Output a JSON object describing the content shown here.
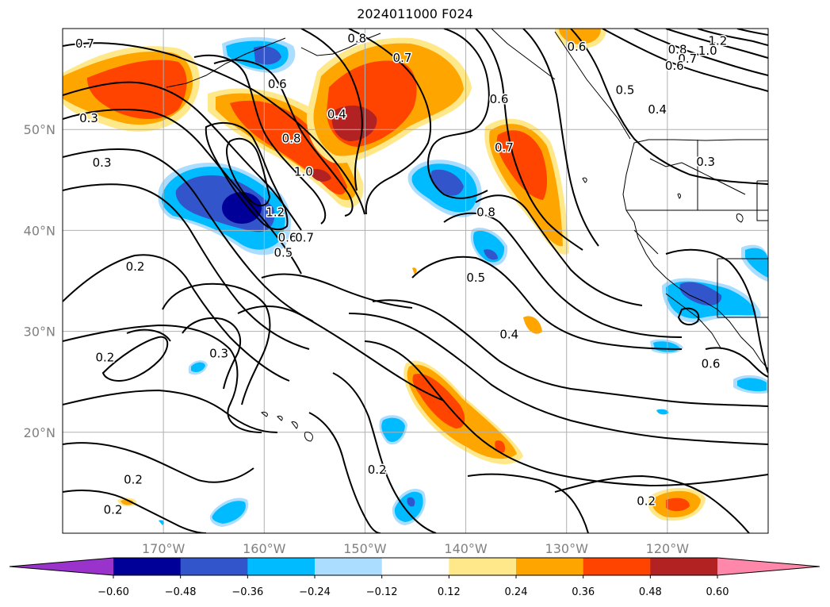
{
  "chart_data": {
    "type": "contour-map",
    "title": "2024011000 F024",
    "projection": "cylindrical",
    "lon_range": [
      -180,
      -110
    ],
    "lat_range": [
      10,
      60
    ],
    "lon_ticks": [
      {
        "value": -170,
        "label": "170°W"
      },
      {
        "value": -160,
        "label": "160°W"
      },
      {
        "value": -150,
        "label": "150°W"
      },
      {
        "value": -140,
        "label": "140°W"
      },
      {
        "value": -130,
        "label": "130°W"
      },
      {
        "value": -120,
        "label": "120°W"
      }
    ],
    "lat_ticks": [
      {
        "value": 20,
        "label": "20°N"
      },
      {
        "value": 30,
        "label": "30°N"
      },
      {
        "value": 40,
        "label": "40°N"
      },
      {
        "value": 50,
        "label": "50°N"
      }
    ],
    "grid": true,
    "colorbar": {
      "orientation": "horizontal",
      "extend": "both",
      "levels": [
        -0.6,
        -0.48,
        -0.36,
        -0.24,
        -0.12,
        0.12,
        0.24,
        0.36,
        0.48,
        0.6
      ],
      "tick_labels": [
        "−0.60",
        "−0.48",
        "−0.36",
        "−0.24",
        "−0.12",
        "0.12",
        "0.24",
        "0.36",
        "0.48",
        "0.60"
      ],
      "colors": [
        "#9933cc",
        "#000099",
        "#3355cc",
        "#00bbff",
        "#aaddff",
        "#ffffff",
        "#ffe88a",
        "#ffa500",
        "#ff4400",
        "#b22222",
        "#ff88aa"
      ]
    },
    "contour_labels": [
      {
        "text": "0.7",
        "lon": -177.8,
        "lat": 58.5
      },
      {
        "text": "0.8",
        "lon": -150.8,
        "lat": 59.0
      },
      {
        "text": "0.6",
        "lon": -129.0,
        "lat": 58.2
      },
      {
        "text": "1.2",
        "lon": -115.0,
        "lat": 58.8
      },
      {
        "text": "1.0",
        "lon": -116.0,
        "lat": 57.8
      },
      {
        "text": "0.8",
        "lon": -119.0,
        "lat": 57.9
      },
      {
        "text": "0.7",
        "lon": -118.0,
        "lat": 57.0
      },
      {
        "text": "0.6",
        "lon": -119.3,
        "lat": 56.3
      },
      {
        "text": "0.7",
        "lon": -146.3,
        "lat": 57.1
      },
      {
        "text": "0.6",
        "lon": -158.7,
        "lat": 54.5
      },
      {
        "text": "0.6",
        "lon": -136.7,
        "lat": 53.0
      },
      {
        "text": "0.5",
        "lon": -124.2,
        "lat": 53.9
      },
      {
        "text": "0.4",
        "lon": -121.0,
        "lat": 52.0
      },
      {
        "text": "0.3",
        "lon": -177.4,
        "lat": 51.1
      },
      {
        "text": "0.4",
        "lon": -152.8,
        "lat": 51.5
      },
      {
        "text": "0.8",
        "lon": -157.3,
        "lat": 49.1
      },
      {
        "text": "0.7",
        "lon": -136.2,
        "lat": 48.2
      },
      {
        "text": "0.3",
        "lon": -116.2,
        "lat": 46.8
      },
      {
        "text": "0.3",
        "lon": -176.1,
        "lat": 46.7
      },
      {
        "text": "1.0",
        "lon": -156.1,
        "lat": 45.8
      },
      {
        "text": "1.2",
        "lon": -158.9,
        "lat": 41.8
      },
      {
        "text": "0.8",
        "lon": -138.0,
        "lat": 41.8
      },
      {
        "text": "0.6",
        "lon": -157.7,
        "lat": 39.3
      },
      {
        "text": "0.7",
        "lon": -156.0,
        "lat": 39.3
      },
      {
        "text": "0.5",
        "lon": -158.1,
        "lat": 37.8
      },
      {
        "text": "0.2",
        "lon": -172.8,
        "lat": 36.4
      },
      {
        "text": "0.5",
        "lon": -139.0,
        "lat": 35.3
      },
      {
        "text": "0.4",
        "lon": -135.7,
        "lat": 29.7
      },
      {
        "text": "0.6",
        "lon": -115.7,
        "lat": 26.8
      },
      {
        "text": "0.3",
        "lon": -164.5,
        "lat": 27.8
      },
      {
        "text": "0.2",
        "lon": -175.8,
        "lat": 27.4
      },
      {
        "text": "0.2",
        "lon": -148.8,
        "lat": 16.3
      },
      {
        "text": "0.2",
        "lon": -173.0,
        "lat": 15.3
      },
      {
        "text": "0.2",
        "lon": -122.1,
        "lat": 13.2
      },
      {
        "text": "0.2",
        "lon": -175.0,
        "lat": 12.3
      }
    ]
  }
}
